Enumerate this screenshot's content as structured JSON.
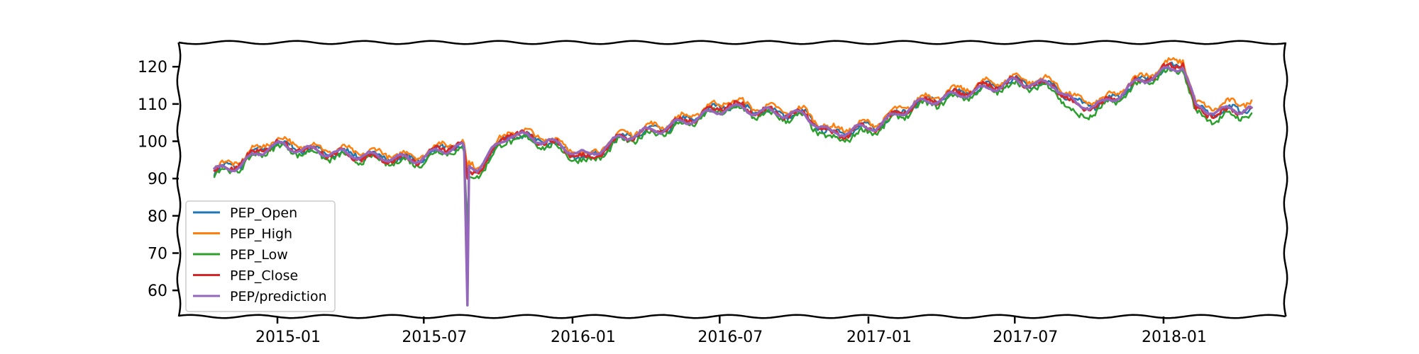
{
  "chart_data": {
    "type": "line",
    "title": "",
    "xlabel": "",
    "ylabel": "",
    "xlim": [
      "2014-09-01",
      "2018-06-01"
    ],
    "ylim": [
      53,
      126.5
    ],
    "yticks": [
      60,
      70,
      80,
      90,
      100,
      110,
      120
    ],
    "xticks": [
      "2015-01-01",
      "2015-07-01",
      "2016-01-01",
      "2016-07-01",
      "2017-01-01",
      "2017-07-01",
      "2018-01-01"
    ],
    "xtick_labels": [
      "2015-01",
      "2015-07",
      "2016-01",
      "2016-07",
      "2017-01",
      "2017-07",
      "2018-01"
    ],
    "grid": false,
    "legend_position": "lower-left",
    "style": "xkcd-sketch",
    "series": [
      {
        "name": "PEP_Open",
        "color": "#1f77b4",
        "x": [
          "2014-10-15",
          "2014-11-15",
          "2014-12-25",
          "2015-03-01",
          "2015-05-01",
          "2015-06-20",
          "2015-08-05",
          "2015-08-20",
          "2015-08-24",
          "2015-08-26",
          "2015-09-05",
          "2015-10-15",
          "2015-12-01",
          "2016-01-20",
          "2016-03-01",
          "2016-05-01",
          "2016-07-10",
          "2016-08-20",
          "2016-10-15",
          "2016-11-15",
          "2017-01-10",
          "2017-03-01",
          "2017-05-15",
          "2017-07-01",
          "2017-08-20",
          "2017-09-15",
          "2017-10-20",
          "2017-12-01",
          "2018-01-25",
          "2018-02-10",
          "2018-03-10",
          "2018-04-20"
        ],
        "y": [
          92,
          94,
          99.5,
          97,
          96,
          95,
          99,
          98.5,
          91,
          92,
          92,
          102,
          100,
          95,
          101,
          104,
          110,
          108,
          107,
          102,
          104,
          110,
          114,
          116,
          115,
          110,
          110,
          116,
          121,
          108,
          108,
          109
        ]
      },
      {
        "name": "PEP_High",
        "color": "#ff7f0e",
        "x": [
          "2014-10-15",
          "2014-11-15",
          "2014-12-25",
          "2015-03-01",
          "2015-05-01",
          "2015-06-20",
          "2015-08-05",
          "2015-08-20",
          "2015-08-24",
          "2015-08-26",
          "2015-09-05",
          "2015-10-15",
          "2015-12-01",
          "2016-01-20",
          "2016-03-01",
          "2016-05-01",
          "2016-07-10",
          "2016-08-20",
          "2016-10-15",
          "2016-11-15",
          "2017-01-10",
          "2017-03-01",
          "2017-05-15",
          "2017-07-01",
          "2017-08-20",
          "2017-09-15",
          "2017-10-20",
          "2017-12-01",
          "2018-01-25",
          "2018-02-10",
          "2018-03-10",
          "2018-04-20"
        ],
        "y": [
          92.8,
          95,
          100.5,
          98,
          97,
          96,
          100,
          99.5,
          93,
          93.5,
          93,
          103,
          101,
          96,
          102,
          105,
          111,
          109,
          108,
          103,
          105,
          111,
          115,
          117,
          116,
          111,
          111,
          117,
          122.5,
          109.5,
          109.5,
          111
        ]
      },
      {
        "name": "PEP_Low",
        "color": "#2ca02c",
        "x": [
          "2014-10-15",
          "2014-11-15",
          "2014-12-25",
          "2015-03-01",
          "2015-05-01",
          "2015-06-20",
          "2015-08-05",
          "2015-08-20",
          "2015-08-24",
          "2015-08-26",
          "2015-09-05",
          "2015-10-15",
          "2015-12-01",
          "2016-01-20",
          "2016-03-01",
          "2016-05-01",
          "2016-07-10",
          "2016-08-20",
          "2016-10-15",
          "2016-11-15",
          "2017-01-10",
          "2017-03-01",
          "2017-05-15",
          "2017-07-01",
          "2017-08-20",
          "2017-09-15",
          "2017-10-20",
          "2017-12-01",
          "2018-01-25",
          "2018-02-10",
          "2018-03-10",
          "2018-04-20"
        ],
        "y": [
          91,
          93,
          98.5,
          96,
          95,
          94,
          98,
          97,
          76.5,
          90,
          91,
          101,
          99,
          94,
          100,
          103,
          109,
          107,
          106,
          100,
          103,
          109,
          113,
          115,
          114,
          106,
          109,
          115,
          120,
          107,
          106,
          107.5
        ]
      },
      {
        "name": "PEP_Close",
        "color": "#d62728",
        "x": [
          "2014-10-15",
          "2014-11-15",
          "2014-12-25",
          "2015-03-01",
          "2015-05-01",
          "2015-06-20",
          "2015-08-05",
          "2015-08-20",
          "2015-08-24",
          "2015-08-26",
          "2015-09-05",
          "2015-10-15",
          "2015-12-01",
          "2016-01-20",
          "2016-03-01",
          "2016-05-01",
          "2016-07-10",
          "2016-08-20",
          "2016-10-15",
          "2016-11-15",
          "2017-01-10",
          "2017-03-01",
          "2017-05-15",
          "2017-07-01",
          "2017-08-20",
          "2017-09-15",
          "2017-10-20",
          "2017-12-01",
          "2018-01-25",
          "2018-02-10",
          "2018-03-10",
          "2018-04-20"
        ],
        "y": [
          91.5,
          94,
          99.5,
          97,
          95.5,
          95,
          99,
          98.5,
          90,
          91.5,
          92,
          102.5,
          100,
          95,
          101,
          104,
          110,
          108,
          107,
          101.5,
          104,
          110,
          114,
          116,
          115,
          109,
          110,
          116,
          121.5,
          108,
          107.5,
          109
        ]
      },
      {
        "name": "PEP/prediction",
        "color": "#9467bd",
        "x": [
          "2014-10-15",
          "2014-11-15",
          "2014-12-25",
          "2015-03-01",
          "2015-05-01",
          "2015-06-20",
          "2015-08-05",
          "2015-08-20",
          "2015-08-24",
          "2015-08-26",
          "2015-09-05",
          "2015-10-15",
          "2015-12-01",
          "2016-01-20",
          "2016-03-01",
          "2016-05-01",
          "2016-07-10",
          "2016-08-20",
          "2016-10-15",
          "2016-11-15",
          "2017-01-10",
          "2017-03-01",
          "2017-05-15",
          "2017-07-01",
          "2017-08-20",
          "2017-09-15",
          "2017-10-20",
          "2017-12-01",
          "2018-01-25",
          "2018-02-10",
          "2018-03-10",
          "2018-04-20"
        ],
        "y": [
          92,
          93.5,
          99,
          97,
          96,
          95,
          98.5,
          98.5,
          56,
          93,
          93,
          102,
          100,
          96,
          101,
          104,
          109,
          108,
          107,
          102,
          104,
          110,
          113.5,
          116,
          115,
          109.5,
          110,
          116,
          120.5,
          109,
          108,
          109
        ]
      }
    ]
  }
}
